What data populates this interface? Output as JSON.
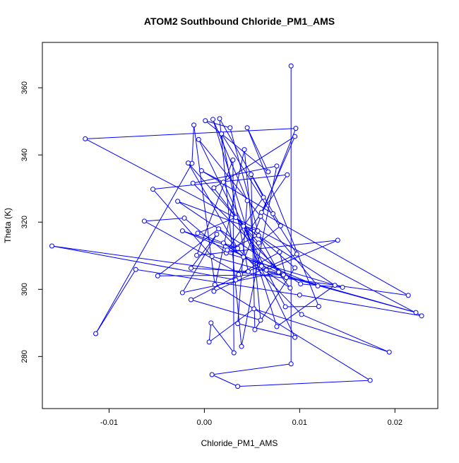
{
  "chart_data": {
    "type": "line",
    "title": "ATOM2 Southbound Chloride_PM1_AMS",
    "xlabel": "Chloride_PM1_AMS",
    "ylabel": "Theta (K)",
    "xlim": [
      -0.017,
      0.0245
    ],
    "ylim": [
      264.5,
      373.5
    ],
    "xticks": [
      -0.01,
      0.0,
      0.01,
      0.02
    ],
    "xtick_labels": [
      "-0.01",
      "0.00",
      "0.01",
      "0.02"
    ],
    "yticks": [
      280,
      300,
      320,
      340,
      360
    ],
    "ytick_labels": [
      "280",
      "300",
      "320",
      "340",
      "360"
    ],
    "grid": false,
    "marker": "open-circle",
    "color": "#0000ff",
    "series": [
      {
        "name": "",
        "points": [
          [
            0.0091,
            366.5
          ],
          [
            0.0091,
            277.8
          ],
          [
            0.0008,
            274.6
          ],
          [
            0.0035,
            271.1
          ],
          [
            0.0174,
            272.9
          ],
          [
            0.0011,
            301.4
          ],
          [
            -0.0011,
            348.9
          ],
          [
            -0.0013,
            337.5
          ],
          [
            -0.0114,
            286.8
          ],
          [
            -0.0072,
            305.9
          ],
          [
            0.01,
            298.3
          ],
          [
            0.0228,
            292.1
          ],
          [
            -0.0125,
            344.8
          ],
          [
            0.0096,
            347.9
          ],
          [
            0.0033,
            302.8
          ],
          [
            -0.016,
            312.9
          ],
          [
            0.0214,
            298.2
          ],
          [
            0.006,
            322.9
          ],
          [
            0.0095,
            345.5
          ],
          [
            0.001,
            330.2
          ],
          [
            0.009,
            300.4
          ],
          [
            0.002,
            313.8
          ],
          [
            0.0041,
            309.6
          ],
          [
            0.0083,
            304.3
          ],
          [
            -0.0049,
            304.0
          ],
          [
            0.0015,
            318.0
          ],
          [
            0.0102,
            292.5
          ],
          [
            0.0194,
            281.3
          ],
          [
            0.0052,
            294.2
          ],
          [
            0.0005,
            284.3
          ],
          [
            0.0007,
            290.0
          ],
          [
            0.0031,
            281.1
          ],
          [
            0.003,
            338.5
          ],
          [
            -0.0008,
            310.1
          ],
          [
            0.014,
            314.6
          ],
          [
            0.0065,
            305.7
          ],
          [
            0.0222,
            293.1
          ],
          [
            0.0008,
            309.8
          ],
          [
            -0.0054,
            329.8
          ],
          [
            0.0087,
            334.1
          ],
          [
            0.0034,
            312.1
          ],
          [
            -0.0023,
            317.4
          ],
          [
            0.0119,
            301.0
          ],
          [
            0.0059,
            321.7
          ],
          [
            -0.0006,
            344.6
          ],
          [
            0.0095,
            285.7
          ],
          [
            0.0035,
            289.8
          ],
          [
            0.0045,
            326.4
          ],
          [
            0.0009,
            350.6
          ],
          [
            0.0076,
            288.9
          ],
          [
            0.0137,
            301.2
          ],
          [
            0.0041,
            318.8
          ],
          [
            0.0085,
            294.8
          ],
          [
            0.012,
            294.9
          ],
          [
            0.0045,
            348.1
          ],
          [
            0.0067,
            335.0
          ],
          [
            0.0001,
            350.2
          ],
          [
            0.0027,
            348.1
          ],
          [
            0.0056,
            317.4
          ],
          [
            -0.0028,
            326.2
          ],
          [
            0.0101,
            301.6
          ],
          [
            0.0145,
            300.6
          ],
          [
            0.0023,
            310.8
          ],
          [
            -0.0021,
            321.2
          ],
          [
            -0.0063,
            320.3
          ],
          [
            0.0038,
            304.5
          ],
          [
            -0.0014,
            296.9
          ],
          [
            0.0059,
            290.8
          ],
          [
            0.0042,
            341.6
          ],
          [
            0.001,
            299.4
          ],
          [
            0.0097,
            310.5
          ],
          [
            0.0018,
            346.3
          ],
          [
            0.0046,
            305.3
          ],
          [
            -0.0014,
            306.3
          ],
          [
            0.0013,
            316.4
          ],
          [
            -0.0023,
            299.0
          ],
          [
            0.0078,
            305.1
          ],
          [
            0.0057,
            316.0
          ],
          [
            0.0024,
            311.7
          ],
          [
            0.0062,
            327.4
          ],
          [
            0.0049,
            334.2
          ],
          [
            0.0053,
            288.0
          ],
          [
            0.0095,
            306.4
          ],
          [
            0.0033,
            321.4
          ],
          [
            -0.0007,
            316.7
          ],
          [
            0.0035,
            312.2
          ],
          [
            -0.0017,
            337.6
          ],
          [
            0.0057,
            313.8
          ],
          [
            0.008,
            318.9
          ],
          [
            0.0016,
            350.8
          ],
          [
            0.0039,
            283.0
          ],
          [
            0.0076,
            336.7
          ],
          [
            -0.0012,
            331.6
          ],
          [
            0.0086,
            303.5
          ],
          [
            0.0079,
            311.1
          ],
          [
            0.0036,
            304.4
          ],
          [
            0.006,
            306.9
          ],
          [
            0.002,
            331.9
          ],
          [
            -0.0003,
            335.3
          ],
          [
            0.0072,
            322.5
          ]
        ]
      }
    ]
  }
}
